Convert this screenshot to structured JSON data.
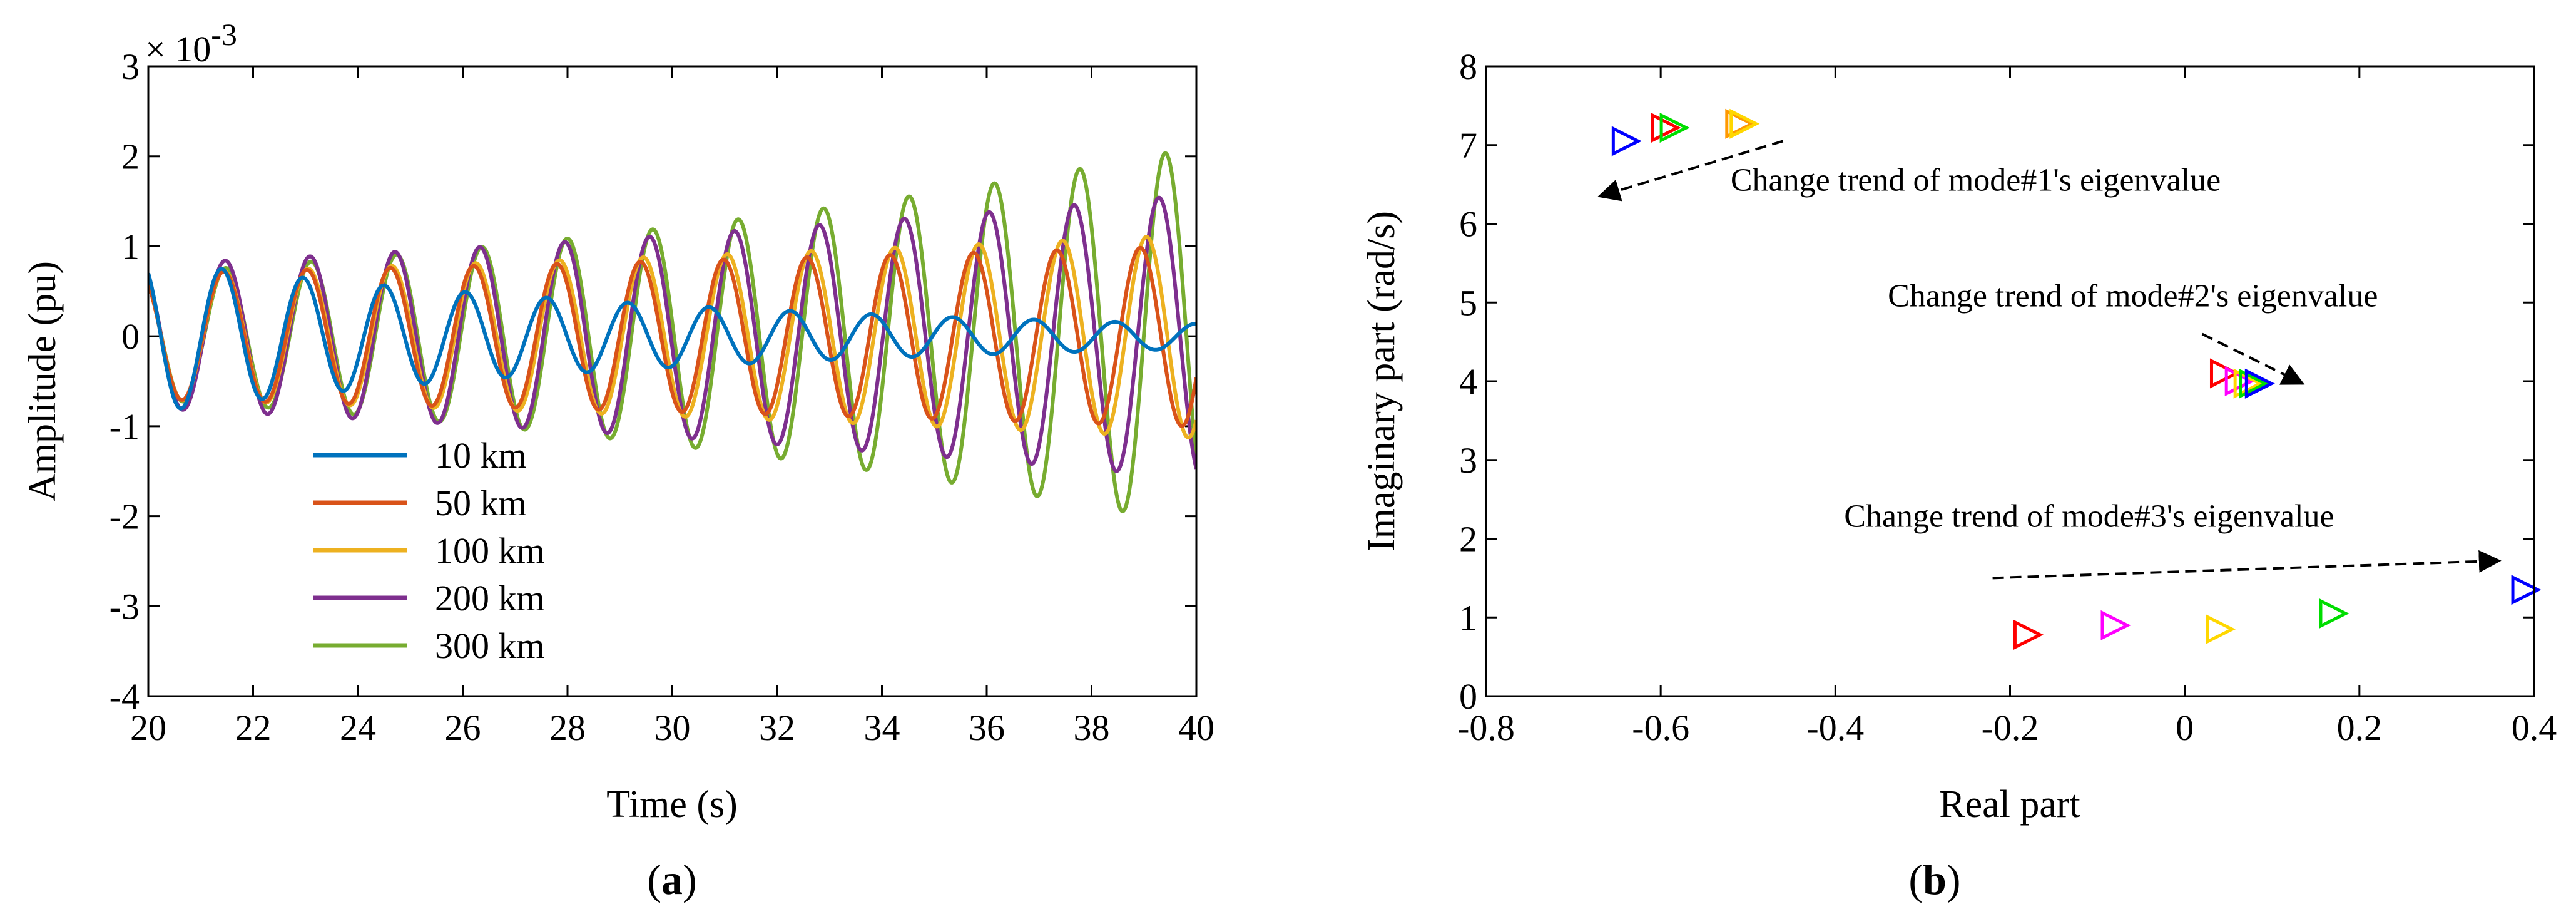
{
  "chart_data": [
    {
      "type": "line",
      "panel_label": "a",
      "xlabel": "Time (s)",
      "ylabel": "Amplitude (pu)",
      "exponent_label": "× 10",
      "exponent_power": "-3",
      "xlim": [
        20,
        40
      ],
      "ylim": [
        -4,
        3
      ],
      "xticks": [
        20,
        22,
        24,
        26,
        28,
        30,
        32,
        34,
        36,
        38,
        40
      ],
      "yticks": [
        -4,
        -3,
        -2,
        -1,
        0,
        1,
        2,
        3
      ],
      "legend_position": "lower-left",
      "series": [
        {
          "name": "10 km",
          "color": "#0072BD",
          "period": 1.55,
          "phase0": 1.05,
          "damping": 0.015,
          "start_amp": 0.85
        },
        {
          "name": "50 km",
          "color": "#D95319",
          "period": 1.59,
          "phase0": 1.05,
          "damping": -0.018,
          "start_amp": 0.7
        },
        {
          "name": "100 km",
          "color": "#EDB120",
          "period": 1.6,
          "phase0": 1.05,
          "damping": -0.024,
          "start_amp": 0.7
        },
        {
          "name": "200 km",
          "color": "#7E2F8E",
          "period": 1.62,
          "phase0": 1.05,
          "damping": -0.034,
          "start_amp": 0.8
        },
        {
          "name": "300 km",
          "color": "#77AC30",
          "period": 1.63,
          "phase0": 1.05,
          "damping": -0.055,
          "start_amp": 0.7
        }
      ]
    },
    {
      "type": "scatter",
      "panel_label": "b",
      "xlabel": "Real part",
      "ylabel": "Imaginary part (rad/s)",
      "xlim": [
        -0.8,
        0.4
      ],
      "ylim": [
        0,
        8
      ],
      "xticks": [
        -0.8,
        -0.6,
        -0.4,
        -0.2,
        0,
        0.2,
        0.4
      ],
      "yticks": [
        0,
        1,
        2,
        3,
        4,
        5,
        6,
        7,
        8
      ],
      "marker": "right-triangle",
      "points": [
        {
          "x": -0.64,
          "y": 7.05,
          "color": "#0000FF"
        },
        {
          "x": -0.595,
          "y": 7.22,
          "color": "#FF0000"
        },
        {
          "x": -0.585,
          "y": 7.22,
          "color": "#00DD00"
        },
        {
          "x": -0.51,
          "y": 7.27,
          "color": "#FF9900"
        },
        {
          "x": -0.505,
          "y": 7.27,
          "color": "#FFD700"
        },
        {
          "x": 0.045,
          "y": 4.1,
          "color": "#FF0000"
        },
        {
          "x": 0.062,
          "y": 4.0,
          "color": "#FF00FF"
        },
        {
          "x": 0.072,
          "y": 3.97,
          "color": "#FFD700"
        },
        {
          "x": 0.078,
          "y": 3.97,
          "color": "#00DD00"
        },
        {
          "x": 0.085,
          "y": 3.97,
          "color": "#0000FF"
        },
        {
          "x": -0.18,
          "y": 0.78,
          "color": "#FF0000"
        },
        {
          "x": -0.08,
          "y": 0.9,
          "color": "#FF00FF"
        },
        {
          "x": 0.04,
          "y": 0.85,
          "color": "#FFD700"
        },
        {
          "x": 0.17,
          "y": 1.05,
          "color": "#00DD00"
        },
        {
          "x": 0.39,
          "y": 1.35,
          "color": "#0000FF"
        }
      ],
      "annotations": [
        {
          "text": "Change trend of mode#1's eigenvalue",
          "text_x": -0.52,
          "text_y": 6.42,
          "arrow_from": [
            -0.46,
            7.05
          ],
          "arrow_to": [
            -0.67,
            6.35
          ]
        },
        {
          "text": "Change trend of mode#2's eigenvalue",
          "text_x": -0.34,
          "text_y": 4.95,
          "arrow_from": [
            0.02,
            4.6
          ],
          "arrow_to": [
            0.135,
            3.97
          ]
        },
        {
          "text": "Change trend of mode#3's eigenvalue",
          "text_x": -0.39,
          "text_y": 2.15,
          "arrow_from": [
            -0.22,
            1.5
          ],
          "arrow_to": [
            0.36,
            1.72
          ]
        }
      ]
    }
  ]
}
